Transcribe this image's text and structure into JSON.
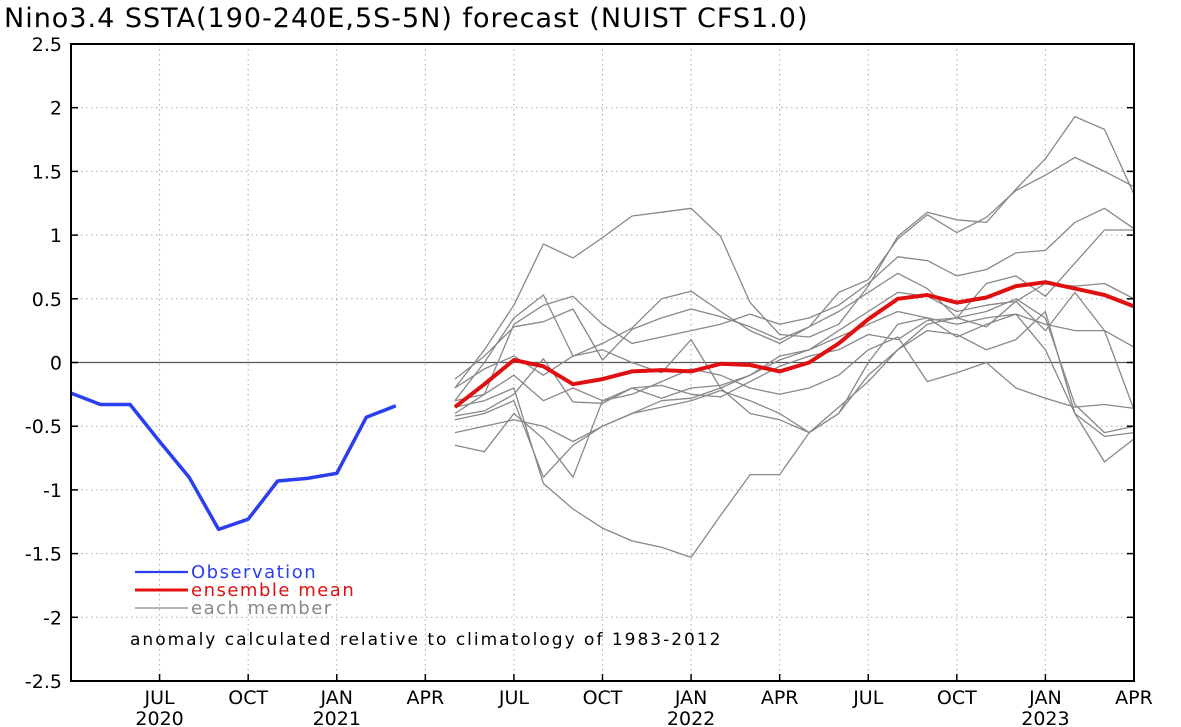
{
  "chart_data": {
    "type": "line",
    "title": "Nino3.4 SSTA(190-240E,5S-5N) forecast (NUIST CFS1.0)",
    "ylim": [
      -2.5,
      2.5
    ],
    "y_ticks": [
      "2.5",
      "2",
      "1.5",
      "1",
      "0.5",
      "0",
      "-0.5",
      "-1",
      "-1.5",
      "-2",
      "-2.5"
    ],
    "xlim": [
      "2020-04",
      "2023-04"
    ],
    "x_ticks": [
      {
        "month": "JUL",
        "year": "2020"
      },
      {
        "month": "OCT",
        "year": ""
      },
      {
        "month": "JAN",
        "year": "2021"
      },
      {
        "month": "APR",
        "year": ""
      },
      {
        "month": "JUL",
        "year": ""
      },
      {
        "month": "OCT",
        "year": ""
      },
      {
        "month": "JAN",
        "year": "2022"
      },
      {
        "month": "APR",
        "year": ""
      },
      {
        "month": "JUL",
        "year": ""
      },
      {
        "month": "OCT",
        "year": ""
      },
      {
        "month": "JAN",
        "year": "2023"
      },
      {
        "month": "APR",
        "year": ""
      }
    ],
    "grid": "dotted",
    "legend": [
      {
        "label": "Observation",
        "color": "#2a3ff0"
      },
      {
        "label": "ensemble mean",
        "color": "#e01010"
      },
      {
        "label": "each member",
        "color": "#888888"
      }
    ],
    "legend_placement": "bottom-left",
    "annotation": "anomaly calculated relative to climatology of 1983-2012",
    "observation": {
      "x": [
        "2020-04",
        "2020-05",
        "2020-06",
        "2020-07",
        "2020-08",
        "2020-09",
        "2020-10",
        "2020-11",
        "2020-12",
        "2021-01",
        "2021-02",
        "2021-03",
        "2021-04"
      ],
      "values": [
        -0.24,
        -0.33,
        -0.33,
        -0.62,
        -0.9,
        -1.31,
        -1.23,
        -0.93,
        -0.91,
        -0.87,
        -0.43,
        -0.34,
        null
      ]
    },
    "forecast_x": [
      "2021-05",
      "2021-06",
      "2021-07",
      "2021-08",
      "2021-09",
      "2021-10",
      "2021-11",
      "2021-12",
      "2022-01",
      "2022-02",
      "2022-03",
      "2022-04",
      "2022-05",
      "2022-06",
      "2022-07",
      "2022-08",
      "2022-09",
      "2022-10",
      "2022-11",
      "2022-12",
      "2023-01",
      "2023-02",
      "2023-03",
      "2023-04"
    ],
    "ensemble_mean": [
      -0.35,
      -0.17,
      0.02,
      -0.03,
      -0.17,
      -0.13,
      -0.07,
      -0.06,
      -0.07,
      -0.01,
      -0.02,
      -0.07,
      0.0,
      0.15,
      0.34,
      0.5,
      0.53,
      0.47,
      0.51,
      0.6,
      0.63,
      0.58,
      0.53,
      0.44
    ],
    "members": [
      [
        -0.2,
        0.1,
        0.45,
        0.93,
        0.82,
        0.98,
        1.15,
        1.18,
        1.21,
        0.99,
        0.47,
        0.22,
        0.2,
        0.3,
        0.6,
        0.99,
        1.18,
        1.12,
        1.1,
        1.36,
        1.6,
        1.93,
        1.83,
        1.32
      ],
      [
        -0.3,
        0.0,
        0.35,
        0.53,
        0.05,
        0.15,
        0.27,
        0.5,
        0.56,
        0.4,
        0.25,
        0.15,
        0.28,
        0.55,
        0.65,
        0.97,
        1.16,
        1.02,
        1.14,
        1.35,
        1.47,
        1.61,
        1.5,
        1.38
      ],
      [
        -0.4,
        -0.25,
        0.3,
        0.45,
        0.52,
        0.3,
        0.15,
        0.2,
        0.25,
        0.3,
        0.38,
        0.3,
        0.35,
        0.45,
        0.62,
        0.83,
        0.8,
        0.68,
        0.73,
        0.86,
        0.88,
        1.1,
        1.21,
        1.05
      ],
      [
        -0.13,
        0.05,
        0.28,
        0.32,
        0.42,
        0.02,
        0.26,
        0.35,
        0.42,
        0.36,
        0.28,
        0.18,
        0.28,
        0.4,
        0.55,
        0.7,
        0.58,
        0.35,
        0.62,
        0.68,
        0.52,
        0.78,
        1.04,
        1.04
      ],
      [
        -0.2,
        -0.05,
        0.05,
        -0.1,
        0.05,
        0.1,
        0.0,
        -0.08,
        0.18,
        -0.2,
        -0.1,
        0.05,
        0.1,
        0.25,
        0.4,
        0.55,
        0.52,
        0.4,
        0.45,
        0.48,
        0.62,
        0.6,
        0.62,
        0.5
      ],
      [
        -0.3,
        -0.25,
        -0.1,
        -0.3,
        -0.2,
        -0.3,
        -0.2,
        -0.28,
        -0.2,
        -0.18,
        -0.1,
        0.02,
        0.1,
        0.2,
        0.3,
        0.4,
        0.35,
        0.3,
        0.35,
        0.38,
        0.3,
        0.25,
        0.25,
        0.12
      ],
      [
        -0.42,
        -0.38,
        -0.25,
        0.03,
        -0.31,
        -0.32,
        -0.2,
        -0.18,
        -0.25,
        -0.27,
        -0.15,
        -0.03,
        0.05,
        0.1,
        0.22,
        0.18,
        0.33,
        0.35,
        0.28,
        0.48,
        0.25,
        0.55,
        0.25,
        -0.37
      ],
      [
        -0.55,
        -0.5,
        -0.45,
        -0.5,
        -0.62,
        -0.5,
        -0.4,
        -0.3,
        -0.28,
        -0.2,
        -0.4,
        -0.45,
        -0.55,
        -0.4,
        -0.1,
        0.1,
        0.25,
        0.22,
        0.1,
        0.18,
        0.4,
        -0.4,
        -0.58,
        -0.55
      ],
      [
        -0.45,
        -0.4,
        -0.3,
        -0.9,
        -0.65,
        -0.5,
        -0.4,
        -0.35,
        -0.3,
        -0.22,
        -0.3,
        -0.4,
        -0.55,
        -0.4,
        0.0,
        0.3,
        0.35,
        0.2,
        0.3,
        0.38,
        0.1,
        -0.4,
        -0.78,
        -0.6
      ],
      [
        -0.65,
        -0.7,
        -0.4,
        -0.6,
        -0.9,
        -0.3,
        -0.25,
        -0.15,
        -0.05,
        -0.1,
        -0.2,
        -0.25,
        -0.2,
        -0.1,
        0.1,
        0.2,
        -0.15,
        -0.08,
        0.0,
        -0.2,
        -0.28,
        -0.35,
        -0.33,
        -0.36
      ],
      [
        -0.35,
        -0.3,
        -0.2,
        -0.95,
        -1.15,
        -1.3,
        -1.4,
        -1.45,
        -1.53,
        -1.2,
        -0.88,
        -0.88,
        -0.55,
        -0.35,
        -0.15,
        0.1,
        0.3,
        0.35,
        0.4,
        0.5,
        0.35,
        -0.33,
        -0.55,
        -0.5
      ]
    ]
  }
}
